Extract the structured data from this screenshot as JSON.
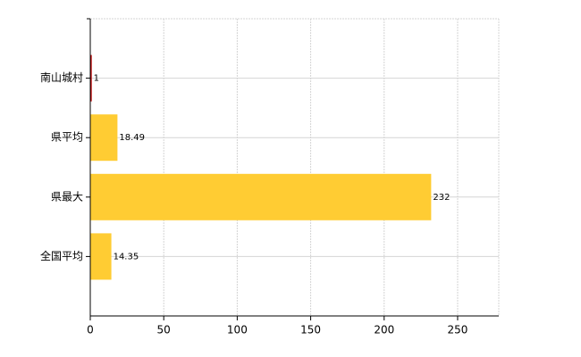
{
  "chart_data": {
    "type": "bar",
    "orientation": "horizontal",
    "categories": [
      "南山城村",
      "県平均",
      "県最大",
      "全国平均"
    ],
    "values": [
      1,
      18.49,
      232,
      14.35
    ],
    "colors": [
      "#c00000",
      "#ffcc33",
      "#ffcc33",
      "#ffcc33"
    ],
    "xlim": [
      0,
      278
    ],
    "xticks": [
      0,
      50,
      100,
      150,
      200,
      250
    ],
    "grid": true
  }
}
